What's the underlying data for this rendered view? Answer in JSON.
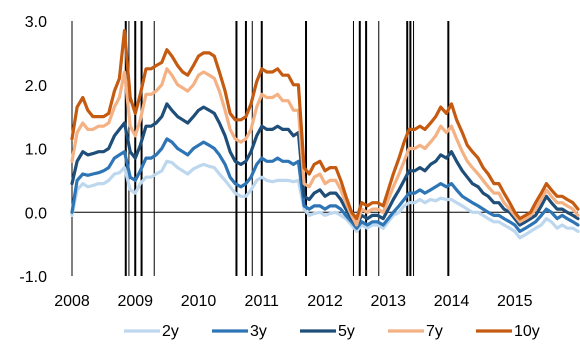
{
  "chart_data": {
    "type": "line",
    "title": "",
    "xlabel": "",
    "ylabel": "",
    "xlim": [
      2008.0,
      2016.0
    ],
    "ylim": [
      -1.0,
      3.0
    ],
    "y_ticks": [
      "-1.0",
      "0.0",
      "1.0",
      "2.0",
      "3.0"
    ],
    "x_ticks": [
      "2008",
      "2009",
      "2010",
      "2011",
      "2012",
      "2013",
      "2014",
      "2015"
    ],
    "grid": false,
    "legend_position": "bottom",
    "event_lines": [
      2008.85,
      2008.9,
      2009.0,
      2009.1,
      2009.3,
      2010.6,
      2010.75,
      2010.85,
      2011.0,
      2011.7,
      2012.45,
      2012.55,
      2012.65,
      2012.85,
      2013.3,
      2013.35,
      2013.4,
      2013.95
    ],
    "x": [
      2008.0,
      2008.08,
      2008.17,
      2008.25,
      2008.33,
      2008.42,
      2008.5,
      2008.58,
      2008.67,
      2008.75,
      2008.83,
      2008.92,
      2009.0,
      2009.08,
      2009.17,
      2009.25,
      2009.33,
      2009.42,
      2009.5,
      2009.58,
      2009.67,
      2009.75,
      2009.83,
      2009.92,
      2010.0,
      2010.08,
      2010.17,
      2010.25,
      2010.33,
      2010.42,
      2010.5,
      2010.58,
      2010.67,
      2010.75,
      2010.83,
      2010.92,
      2011.0,
      2011.08,
      2011.17,
      2011.25,
      2011.33,
      2011.42,
      2011.5,
      2011.58,
      2011.67,
      2011.75,
      2011.83,
      2011.92,
      2012.0,
      2012.08,
      2012.17,
      2012.25,
      2012.33,
      2012.42,
      2012.5,
      2012.58,
      2012.67,
      2012.75,
      2012.83,
      2012.92,
      2013.0,
      2013.08,
      2013.17,
      2013.25,
      2013.33,
      2013.42,
      2013.5,
      2013.58,
      2013.67,
      2013.75,
      2013.83,
      2013.92,
      2014.0,
      2014.08,
      2014.17,
      2014.25,
      2014.33,
      2014.42,
      2014.5,
      2014.58,
      2014.67,
      2014.75,
      2014.83,
      2014.92,
      2015.0,
      2015.08,
      2015.17,
      2015.25,
      2015.33,
      2015.42,
      2015.5,
      2015.58,
      2015.67,
      2015.75,
      2015.83,
      2015.92,
      2016.0
    ],
    "series": [
      {
        "name": "2y",
        "color": "#bdd7ee",
        "values": [
          -0.05,
          0.35,
          0.45,
          0.4,
          0.42,
          0.45,
          0.45,
          0.5,
          0.6,
          0.62,
          0.7,
          0.35,
          0.3,
          0.45,
          0.55,
          0.55,
          0.6,
          0.65,
          0.8,
          0.78,
          0.7,
          0.65,
          0.6,
          0.68,
          0.72,
          0.75,
          0.72,
          0.7,
          0.6,
          0.5,
          0.4,
          0.3,
          0.25,
          0.25,
          0.35,
          0.5,
          0.55,
          0.5,
          0.48,
          0.5,
          0.5,
          0.5,
          0.48,
          0.5,
          0.05,
          -0.05,
          -0.02,
          0.0,
          -0.05,
          -0.02,
          0.0,
          -0.05,
          -0.1,
          -0.2,
          -0.3,
          -0.2,
          -0.25,
          -0.2,
          -0.2,
          -0.25,
          -0.15,
          -0.05,
          0.0,
          0.1,
          0.15,
          0.15,
          0.2,
          0.15,
          0.2,
          0.18,
          0.22,
          0.2,
          0.2,
          0.15,
          0.1,
          0.05,
          0.0,
          0.0,
          -0.05,
          -0.1,
          -0.15,
          -0.15,
          -0.2,
          -0.25,
          -0.3,
          -0.4,
          -0.35,
          -0.3,
          -0.25,
          -0.2,
          -0.1,
          -0.15,
          -0.25,
          -0.2,
          -0.25,
          -0.25,
          -0.3
        ]
      },
      {
        "name": "3y",
        "color": "#2e75b6",
        "values": [
          0.0,
          0.5,
          0.6,
          0.58,
          0.6,
          0.62,
          0.65,
          0.7,
          0.85,
          0.9,
          0.95,
          0.55,
          0.5,
          0.65,
          0.85,
          0.85,
          0.9,
          1.0,
          1.15,
          1.1,
          1.0,
          0.95,
          0.9,
          1.0,
          1.05,
          1.1,
          1.05,
          1.0,
          0.9,
          0.75,
          0.55,
          0.45,
          0.4,
          0.45,
          0.55,
          0.75,
          0.85,
          0.8,
          0.8,
          0.85,
          0.8,
          0.8,
          0.75,
          0.8,
          0.1,
          0.05,
          0.1,
          0.1,
          0.05,
          0.1,
          0.1,
          0.05,
          -0.05,
          -0.15,
          -0.25,
          -0.15,
          -0.2,
          -0.15,
          -0.15,
          -0.2,
          -0.1,
          0.0,
          0.1,
          0.2,
          0.3,
          0.3,
          0.35,
          0.3,
          0.35,
          0.4,
          0.45,
          0.4,
          0.45,
          0.35,
          0.25,
          0.2,
          0.15,
          0.1,
          0.05,
          0.0,
          -0.05,
          -0.05,
          -0.1,
          -0.15,
          -0.2,
          -0.3,
          -0.25,
          -0.2,
          -0.15,
          -0.05,
          0.05,
          0.0,
          -0.1,
          -0.05,
          -0.1,
          -0.15,
          -0.2
        ]
      },
      {
        "name": "5y",
        "color": "#1f4e79",
        "values": [
          0.45,
          0.8,
          0.95,
          0.9,
          0.92,
          0.95,
          0.95,
          1.0,
          1.2,
          1.3,
          1.4,
          0.95,
          0.85,
          1.05,
          1.35,
          1.35,
          1.4,
          1.5,
          1.7,
          1.6,
          1.5,
          1.45,
          1.4,
          1.5,
          1.6,
          1.65,
          1.6,
          1.55,
          1.4,
          1.2,
          0.95,
          0.8,
          0.75,
          0.8,
          0.95,
          1.2,
          1.35,
          1.3,
          1.3,
          1.35,
          1.3,
          1.3,
          1.2,
          1.25,
          0.25,
          0.2,
          0.3,
          0.35,
          0.25,
          0.3,
          0.3,
          0.2,
          0.05,
          -0.1,
          -0.2,
          -0.05,
          -0.1,
          -0.05,
          -0.05,
          -0.1,
          0.05,
          0.2,
          0.35,
          0.5,
          0.65,
          0.65,
          0.7,
          0.65,
          0.75,
          0.8,
          0.9,
          0.85,
          0.95,
          0.8,
          0.65,
          0.55,
          0.45,
          0.4,
          0.3,
          0.25,
          0.15,
          0.15,
          0.05,
          0.0,
          -0.1,
          -0.2,
          -0.15,
          -0.1,
          -0.05,
          0.1,
          0.25,
          0.15,
          0.05,
          0.05,
          0.0,
          -0.05,
          -0.1
        ]
      },
      {
        "name": "7y",
        "color": "#f4b183",
        "values": [
          0.8,
          1.25,
          1.4,
          1.3,
          1.3,
          1.35,
          1.35,
          1.4,
          1.65,
          1.8,
          2.2,
          1.35,
          1.2,
          1.45,
          1.85,
          1.85,
          1.9,
          2.0,
          2.25,
          2.15,
          2.0,
          1.95,
          1.9,
          2.0,
          2.15,
          2.2,
          2.15,
          2.1,
          1.9,
          1.6,
          1.3,
          1.15,
          1.1,
          1.15,
          1.3,
          1.65,
          1.85,
          1.8,
          1.8,
          1.85,
          1.75,
          1.75,
          1.6,
          1.6,
          0.45,
          0.4,
          0.55,
          0.6,
          0.45,
          0.5,
          0.5,
          0.35,
          0.15,
          -0.05,
          -0.2,
          0.05,
          0.0,
          0.05,
          0.05,
          0.0,
          0.2,
          0.4,
          0.6,
          0.8,
          1.0,
          1.0,
          1.05,
          1.0,
          1.1,
          1.2,
          1.35,
          1.25,
          1.35,
          1.15,
          0.95,
          0.8,
          0.7,
          0.6,
          0.5,
          0.4,
          0.3,
          0.3,
          0.15,
          0.05,
          -0.05,
          -0.15,
          -0.1,
          -0.05,
          0.05,
          0.2,
          0.35,
          0.25,
          0.15,
          0.15,
          0.1,
          0.05,
          -0.05
        ]
      },
      {
        "name": "10y",
        "color": "#c55a11",
        "values": [
          1.15,
          1.65,
          1.8,
          1.6,
          1.5,
          1.5,
          1.5,
          1.55,
          1.9,
          2.1,
          2.85,
          1.8,
          1.55,
          1.85,
          2.25,
          2.25,
          2.3,
          2.35,
          2.55,
          2.45,
          2.3,
          2.2,
          2.15,
          2.3,
          2.45,
          2.5,
          2.5,
          2.45,
          2.2,
          1.9,
          1.55,
          1.45,
          1.45,
          1.5,
          1.7,
          2.05,
          2.25,
          2.2,
          2.2,
          2.25,
          2.15,
          2.15,
          2.0,
          2.0,
          0.7,
          0.6,
          0.75,
          0.8,
          0.65,
          0.7,
          0.7,
          0.5,
          0.25,
          0.0,
          -0.1,
          0.15,
          0.1,
          0.15,
          0.15,
          0.1,
          0.35,
          0.6,
          0.85,
          1.1,
          1.3,
          1.3,
          1.35,
          1.3,
          1.4,
          1.5,
          1.65,
          1.55,
          1.7,
          1.45,
          1.25,
          1.05,
          0.95,
          0.85,
          0.7,
          0.6,
          0.45,
          0.45,
          0.3,
          0.15,
          0.0,
          -0.1,
          -0.05,
          0.0,
          0.15,
          0.3,
          0.45,
          0.35,
          0.25,
          0.25,
          0.2,
          0.15,
          0.05
        ]
      }
    ]
  }
}
